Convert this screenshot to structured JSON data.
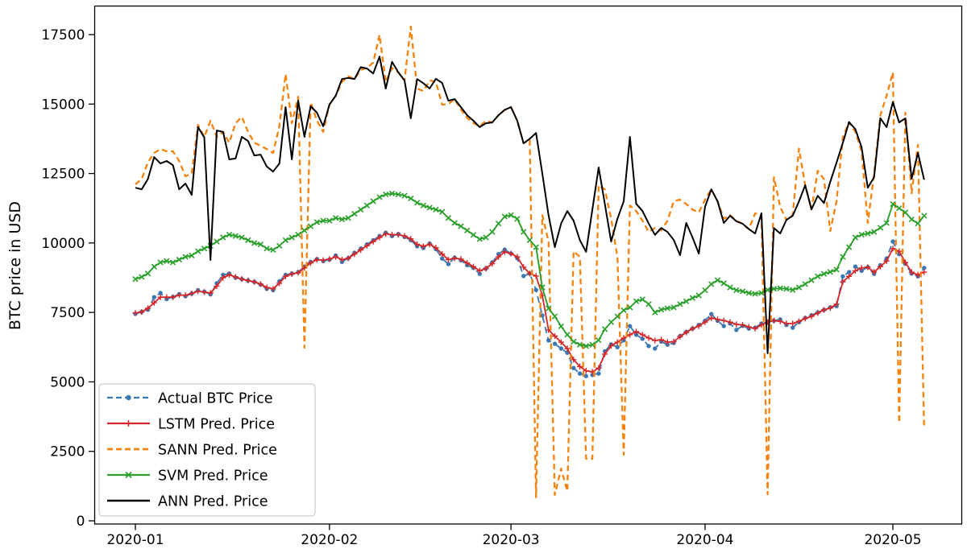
{
  "chart_data": {
    "type": "line",
    "title": "",
    "xlabel": "",
    "ylabel": "BTC price in USD",
    "grid": false,
    "legend_position": "lower left",
    "x_axis": {
      "tick_labels": [
        "2020-01",
        "2020-02",
        "2020-03",
        "2020-04",
        "2020-05"
      ],
      "tick_days": [
        0,
        31,
        60,
        91,
        121
      ],
      "start_date": "2020-01-01",
      "end_date": "2020-05-06"
    },
    "y_axis": {
      "ticks": [
        0,
        2500,
        5000,
        7500,
        10000,
        12500,
        15000,
        17500
      ],
      "ylim": [
        0,
        18500
      ]
    },
    "series": [
      {
        "name": "Actual BTC Price",
        "color": "#3878b4",
        "line": "dashed",
        "dash": "8,5",
        "width": 1.8,
        "marker": "circle",
        "values": [
          7450,
          7520,
          7600,
          8050,
          8200,
          7980,
          8060,
          8160,
          8080,
          8180,
          8300,
          8250,
          8150,
          8550,
          8850,
          8900,
          8750,
          8700,
          8650,
          8600,
          8500,
          8350,
          8300,
          8620,
          8850,
          8900,
          8950,
          9150,
          9320,
          9420,
          9350,
          9400,
          9550,
          9320,
          9450,
          9650,
          9800,
          9950,
          10100,
          10250,
          10370,
          10250,
          10320,
          10220,
          10100,
          9880,
          9820,
          9980,
          9780,
          9440,
          9240,
          9470,
          9380,
          9200,
          9100,
          8890,
          9080,
          9300,
          9600,
          9760,
          9620,
          9450,
          8810,
          8900,
          8310,
          7390,
          6490,
          6370,
          6200,
          6050,
          5500,
          5300,
          5210,
          5250,
          5300,
          6100,
          6350,
          6250,
          6500,
          7010,
          6700,
          6550,
          6290,
          6200,
          6450,
          6340,
          6400,
          6650,
          6800,
          6920,
          7050,
          7200,
          7440,
          7200,
          7010,
          7100,
          6870,
          7020,
          6920,
          6950,
          7100,
          7150,
          7200,
          7250,
          7050,
          6950,
          7150,
          7300,
          7400,
          7500,
          7590,
          7680,
          7730,
          8800,
          8950,
          9150,
          9000,
          9130,
          8890,
          9200,
          9440,
          10050,
          9600,
          9250,
          8900,
          8800,
          9100
        ]
      },
      {
        "name": "LSTM Pred. Price",
        "color": "#d62728",
        "line": "solid",
        "dash": null,
        "width": 1.8,
        "marker": "plus",
        "values": [
          7480,
          7520,
          7650,
          7850,
          8050,
          8050,
          8050,
          8120,
          8120,
          8180,
          8260,
          8230,
          8200,
          8450,
          8750,
          8850,
          8780,
          8700,
          8650,
          8600,
          8520,
          8400,
          8350,
          8550,
          8800,
          8880,
          8930,
          9100,
          9280,
          9400,
          9380,
          9420,
          9500,
          9400,
          9450,
          9600,
          9750,
          9900,
          10050,
          10200,
          10330,
          10300,
          10300,
          10250,
          10150,
          9950,
          9880,
          9950,
          9830,
          9600,
          9400,
          9450,
          9420,
          9280,
          9150,
          9000,
          9080,
          9250,
          9500,
          9680,
          9620,
          9500,
          9130,
          8900,
          8810,
          8110,
          6870,
          6650,
          6430,
          6200,
          5800,
          5550,
          5400,
          5360,
          5500,
          6000,
          6300,
          6430,
          6580,
          6700,
          6810,
          6700,
          6580,
          6490,
          6520,
          6430,
          6450,
          6630,
          6780,
          6920,
          7010,
          7150,
          7300,
          7250,
          7210,
          7150,
          7070,
          7050,
          6980,
          6920,
          7050,
          7150,
          7210,
          7180,
          7100,
          7100,
          7180,
          7280,
          7360,
          7480,
          7590,
          7660,
          7800,
          8600,
          8800,
          9000,
          9100,
          9130,
          8950,
          9150,
          9350,
          9800,
          9700,
          9300,
          8950,
          8850,
          8950
        ]
      },
      {
        "name": "SANN Pred. Price",
        "color": "#f5820d",
        "line": "dashed",
        "dash": "7,4.5",
        "width": 2.3,
        "marker": "none",
        "values": [
          12110,
          12300,
          12900,
          13240,
          13380,
          13300,
          13300,
          12950,
          12400,
          12500,
          14250,
          13820,
          14400,
          13820,
          14000,
          13610,
          14310,
          14540,
          14000,
          13610,
          13500,
          13380,
          13240,
          14200,
          16080,
          14310,
          15260,
          6230,
          15060,
          14400,
          14000,
          14980,
          15300,
          15800,
          16000,
          15900,
          16230,
          16300,
          16500,
          17490,
          15800,
          16300,
          16140,
          15850,
          17790,
          15560,
          15470,
          15850,
          15800,
          14980,
          15000,
          15180,
          14800,
          14500,
          14310,
          14200,
          14400,
          14340,
          14600,
          14790,
          14890,
          14400,
          13590,
          13700,
          850,
          11000,
          10050,
          930,
          1880,
          1070,
          9700,
          9500,
          2230,
          2230,
          12080,
          11930,
          10870,
          9500,
          2380,
          11350,
          11150,
          10800,
          10400,
          10540,
          10450,
          10800,
          11500,
          11560,
          11400,
          11200,
          11100,
          11560,
          11930,
          11500,
          10870,
          11000,
          10800,
          10690,
          10500,
          11070,
          10980,
          950,
          12370,
          11300,
          10830,
          11000,
          13400,
          12080,
          11210,
          12600,
          12300,
          10430,
          11500,
          13800,
          14350,
          14000,
          13300,
          10720,
          12500,
          14600,
          15300,
          16140,
          3530,
          14690,
          11790,
          13530,
          3330
        ]
      },
      {
        "name": "SVM Pred. Price",
        "color": "#2ca02c",
        "line": "solid",
        "dash": null,
        "width": 1.9,
        "marker": "x",
        "values": [
          8700,
          8780,
          8900,
          9150,
          9300,
          9350,
          9300,
          9400,
          9500,
          9550,
          9700,
          9800,
          9900,
          10050,
          10200,
          10300,
          10250,
          10200,
          10100,
          10000,
          9950,
          9800,
          9750,
          9900,
          10100,
          10200,
          10300,
          10450,
          10600,
          10750,
          10800,
          10800,
          10900,
          10850,
          10900,
          11050,
          11200,
          11350,
          11500,
          11650,
          11750,
          11780,
          11750,
          11700,
          11600,
          11450,
          11350,
          11270,
          11200,
          11120,
          10900,
          10720,
          10600,
          10450,
          10290,
          10140,
          10200,
          10400,
          10700,
          10950,
          11000,
          10870,
          10400,
          10100,
          9850,
          8400,
          7650,
          7360,
          7000,
          6700,
          6450,
          6340,
          6290,
          6340,
          6500,
          6900,
          7150,
          7360,
          7580,
          7680,
          7900,
          7970,
          7800,
          7500,
          7600,
          7650,
          7680,
          7800,
          7900,
          8020,
          8110,
          8300,
          8520,
          8660,
          8550,
          8400,
          8300,
          8260,
          8200,
          8170,
          8200,
          8310,
          8350,
          8370,
          8350,
          8310,
          8400,
          8520,
          8660,
          8800,
          8890,
          8960,
          9040,
          9500,
          9850,
          10200,
          10300,
          10340,
          10400,
          10550,
          10720,
          11400,
          11250,
          11100,
          10850,
          10700,
          10980
        ]
      },
      {
        "name": "ANN Pred. Price",
        "color": "#000000",
        "line": "solid",
        "dash": null,
        "width": 2.0,
        "marker": "none",
        "values": [
          11990,
          11930,
          12300,
          13090,
          12860,
          12950,
          12800,
          11930,
          12140,
          11730,
          14170,
          13800,
          9390,
          14050,
          14000,
          13010,
          13040,
          13820,
          13670,
          13150,
          13180,
          12750,
          12570,
          12860,
          14890,
          13010,
          15120,
          13820,
          14920,
          14690,
          14200,
          14980,
          15300,
          15900,
          15940,
          15900,
          16330,
          16280,
          16100,
          16710,
          15560,
          16520,
          16140,
          15850,
          14490,
          15900,
          15750,
          15560,
          15910,
          15760,
          15120,
          15180,
          14890,
          14600,
          14400,
          14170,
          14310,
          14340,
          14600,
          14790,
          14890,
          14400,
          13590,
          13750,
          13960,
          12500,
          11000,
          9850,
          10700,
          11150,
          10800,
          10100,
          9680,
          11200,
          12720,
          11400,
          10050,
          10870,
          11500,
          13820,
          11410,
          11150,
          10700,
          10290,
          10540,
          10400,
          10110,
          9560,
          10720,
          10200,
          9620,
          11300,
          11930,
          11500,
          10720,
          10980,
          10780,
          10690,
          10500,
          10340,
          11070,
          6030,
          10540,
          10340,
          10830,
          10980,
          11500,
          12080,
          11210,
          11700,
          11440,
          12200,
          12890,
          13600,
          14350,
          14100,
          13440,
          11990,
          12370,
          14490,
          14170,
          15070,
          14340,
          14490,
          12310,
          13240,
          12280
        ]
      }
    ]
  }
}
